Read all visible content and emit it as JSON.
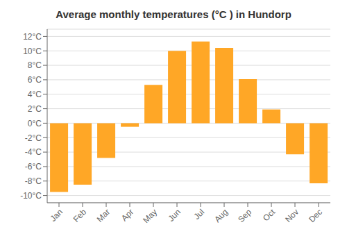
{
  "chart_data": {
    "type": "bar",
    "title": "Average monthly temperatures (°C ) in Hundorp",
    "categories": [
      "Jan",
      "Feb",
      "Mar",
      "Apr",
      "May",
      "Jun",
      "Jul",
      "Aug",
      "Sep",
      "Oct",
      "Nov",
      "Dec"
    ],
    "values": [
      -9.5,
      -8.5,
      -4.8,
      -0.5,
      5.3,
      10.0,
      11.3,
      10.4,
      6.1,
      1.9,
      -4.3,
      -8.3
    ],
    "color": "#FFA726",
    "ylim": [
      -11,
      13
    ],
    "yticks": [
      {
        "value": -10,
        "label": "-10°C"
      },
      {
        "value": -8,
        "label": "-8°C"
      },
      {
        "value": -6,
        "label": "-6°C"
      },
      {
        "value": -4,
        "label": "-4°C"
      },
      {
        "value": -2,
        "label": "-2°C"
      },
      {
        "value": 0,
        "label": "0°C"
      },
      {
        "value": 2,
        "label": "2°C"
      },
      {
        "value": 4,
        "label": "4°C"
      },
      {
        "value": 6,
        "label": "6°C"
      },
      {
        "value": 8,
        "label": "8°C"
      },
      {
        "value": 10,
        "label": "10°C"
      },
      {
        "value": 12,
        "label": "12°C"
      }
    ],
    "grid": true
  }
}
